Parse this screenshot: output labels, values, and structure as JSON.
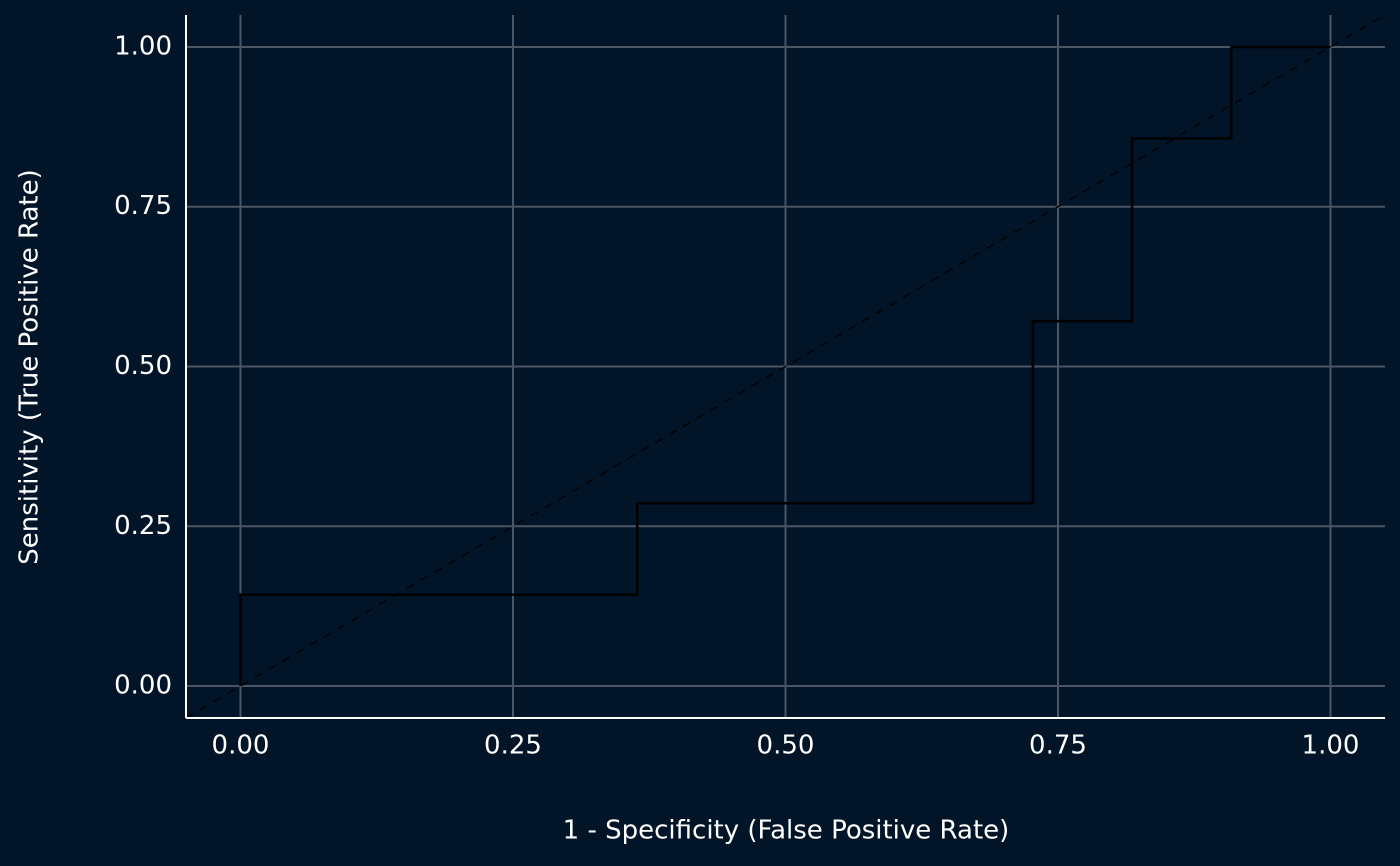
{
  "chart_data": {
    "type": "line",
    "x_label": "1 - Specificity (False Positive Rate)",
    "y_label": "Sensitivity (True Positive Rate)",
    "x": [
      0,
      0,
      0.364,
      0.364,
      0.727,
      0.727,
      0.818,
      0.818,
      0.909,
      0.909,
      1
    ],
    "values": [
      0,
      0.143,
      0.143,
      0.286,
      0.286,
      0.571,
      0.571,
      0.857,
      0.857,
      1,
      1
    ],
    "color": "#000000",
    "xlim": [
      -0.05,
      1.05
    ],
    "ylim": [
      -0.05,
      1.05
    ],
    "xticks": [
      {
        "value": 0,
        "label": "0.00"
      },
      {
        "value": 0.25,
        "label": "0.25"
      },
      {
        "value": 0.5,
        "label": "0.50"
      },
      {
        "value": 0.75,
        "label": "0.75"
      },
      {
        "value": 1,
        "label": "1.00"
      }
    ],
    "yticks": [
      {
        "value": 0,
        "label": "0.00"
      },
      {
        "value": 0.25,
        "label": "0.25"
      },
      {
        "value": 0.5,
        "label": "0.50"
      },
      {
        "value": 0.75,
        "label": "0.75"
      },
      {
        "value": 1,
        "label": "1.00"
      }
    ],
    "grid": true,
    "diagonal": true
  }
}
